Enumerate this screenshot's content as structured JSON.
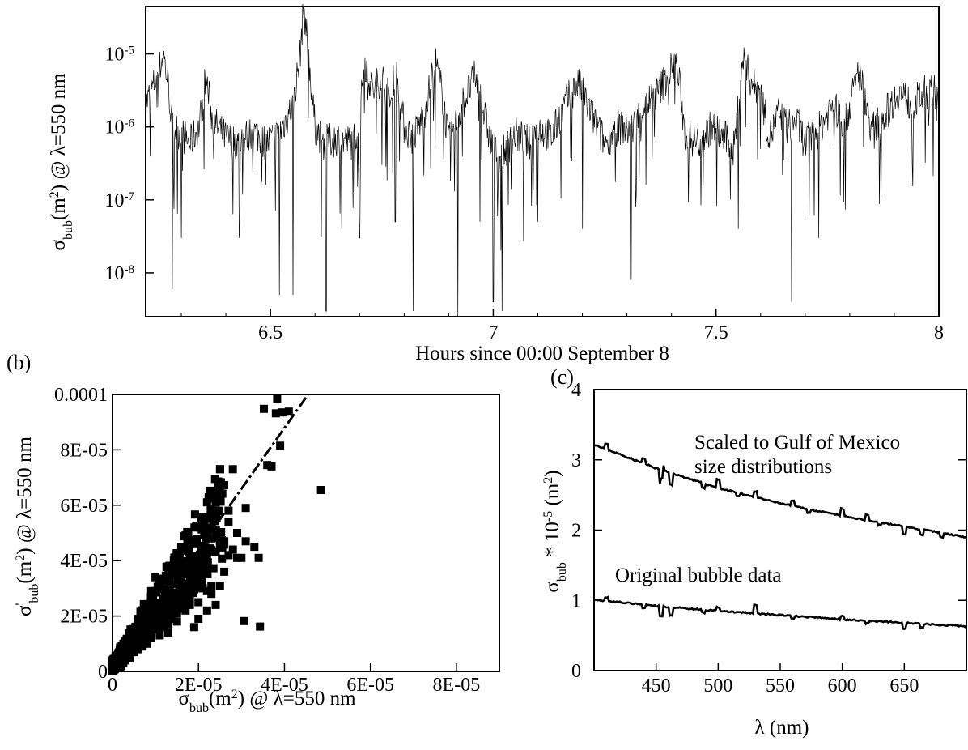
{
  "chart_data": [
    {
      "id": "a",
      "panel_label": "",
      "type": "line",
      "x_label": "Hours since 00:00 September 8",
      "y_label": {
        "sym": "σ",
        "sub": "bub",
        "mid": "(m",
        "sup": "2",
        "rest": ") @ λ=550 nm"
      },
      "xlim": [
        6.22,
        8.0
      ],
      "ylim_log10": [
        -8.6,
        -4.35
      ],
      "y_scale": "log",
      "x_ticks": [
        {
          "v": 6.5,
          "label": "6.5"
        },
        {
          "v": 7,
          "label": "7"
        },
        {
          "v": 7.5,
          "label": "7.5"
        },
        {
          "v": 8,
          "label": "8"
        }
      ],
      "y_ticks": [
        {
          "exp": -8,
          "label": "-8"
        },
        {
          "exp": -7,
          "label": "-7"
        },
        {
          "exp": -6,
          "label": "-6"
        },
        {
          "exp": -5,
          "label": "-5"
        }
      ],
      "series": [
        {
          "x": [
            6.22,
            6.24,
            6.25,
            6.26,
            6.27,
            6.28,
            6.3,
            6.32,
            6.34,
            6.355,
            6.37,
            6.4,
            6.43,
            6.46,
            6.49,
            6.52,
            6.55,
            6.565,
            6.575,
            6.585,
            6.6,
            6.62,
            6.65,
            6.68,
            6.7,
            6.71,
            6.73,
            6.75,
            6.77,
            6.78,
            6.8,
            6.82,
            6.845,
            6.87,
            6.885,
            6.9,
            6.93,
            6.96,
            6.99,
            7.0,
            7.02,
            7.05,
            7.08,
            7.1,
            7.13,
            7.16,
            7.19,
            7.22,
            7.25,
            7.28,
            7.31,
            7.34,
            7.37,
            7.39,
            7.41,
            7.42,
            7.43,
            7.46,
            7.49,
            7.52,
            7.54,
            7.56,
            7.58,
            7.6,
            7.62,
            7.64,
            7.66,
            7.68,
            7.7,
            7.73,
            7.76,
            7.79,
            7.82,
            7.85,
            7.88,
            7.91,
            7.94,
            7.97,
            8.0
          ],
          "y": [
            2e-06,
            4e-06,
            6e-06,
            1e-05,
            4e-06,
            1e-06,
            8e-07,
            6e-07,
            1e-06,
            5e-06,
            1.2e-06,
            7e-07,
            6e-07,
            9e-07,
            6e-07,
            8e-07,
            2e-06,
            8e-06,
            4.5e-05,
            1e-05,
            1e-06,
            6e-07,
            7e-07,
            6e-07,
            1e-06,
            8.5e-06,
            3e-06,
            5e-06,
            2e-06,
            7e-06,
            1e-06,
            7e-07,
            1.5e-06,
            8e-06,
            3e-06,
            6e-07,
            2e-06,
            5e-06,
            8e-07,
            5e-07,
            4e-07,
            8e-07,
            6e-07,
            1e-06,
            7e-07,
            2e-06,
            4e-06,
            1.5e-06,
            6e-07,
            1e-06,
            9e-07,
            2e-06,
            3e-06,
            5e-06,
            8e-06,
            3e-06,
            8e-07,
            6e-07,
            1e-06,
            7e-07,
            5e-07,
            9e-06,
            4e-06,
            3e-06,
            7e-07,
            1.5e-06,
            1e-06,
            1.2e-06,
            6e-07,
            9e-07,
            2e-06,
            1.1e-06,
            6e-06,
            9e-07,
            1.5e-06,
            3e-06,
            2e-06,
            3e-06,
            3e-06
          ]
        }
      ],
      "notable_dips": [
        {
          "x": 6.28,
          "y": 6e-09
        },
        {
          "x": 6.3,
          "y": 3e-08
        },
        {
          "x": 6.43,
          "y": 3e-08
        },
        {
          "x": 6.52,
          "y": 5e-09
        },
        {
          "x": 6.55,
          "y": 5e-09
        },
        {
          "x": 6.625,
          "y": 3e-09
        },
        {
          "x": 6.66,
          "y": 4e-08
        },
        {
          "x": 6.7,
          "y": 3e-08
        },
        {
          "x": 6.78,
          "y": 5e-08
        },
        {
          "x": 6.82,
          "y": 3e-09
        },
        {
          "x": 6.92,
          "y": 2e-09
        },
        {
          "x": 6.97,
          "y": 5e-08
        },
        {
          "x": 7.0,
          "y": 4e-09
        },
        {
          "x": 7.02,
          "y": 3e-09
        },
        {
          "x": 7.1,
          "y": 5e-08
        },
        {
          "x": 7.2,
          "y": 4e-08
        },
        {
          "x": 7.31,
          "y": 8e-09
        },
        {
          "x": 7.55,
          "y": 4e-08
        },
        {
          "x": 7.67,
          "y": 4e-09
        },
        {
          "x": 7.73,
          "y": 3e-08
        }
      ]
    },
    {
      "id": "b",
      "panel_label": "(b)",
      "type": "scatter",
      "x_label": {
        "sym": "σ",
        "sub": "bub",
        "mid": "(m",
        "sup": "2",
        "rest": ") @ λ=550 nm"
      },
      "y_label": {
        "sym": "σ",
        "prime": "'",
        "sub": "bub",
        "mid": "(m",
        "sup": "2",
        "rest": ") @ λ=550 nm"
      },
      "xlim": [
        0,
        9e-05
      ],
      "ylim": [
        0,
        0.0001
      ],
      "x_ticks": [
        {
          "v": 0,
          "label": "0"
        },
        {
          "v": 2e-05,
          "label": "2E-05"
        },
        {
          "v": 4e-05,
          "label": "4E-05"
        },
        {
          "v": 6e-05,
          "label": "6E-05"
        },
        {
          "v": 8e-05,
          "label": "8E-05"
        }
      ],
      "y_ticks": [
        {
          "v": 0,
          "label": "0"
        },
        {
          "v": 2e-05,
          "label": "2E-05"
        },
        {
          "v": 4e-05,
          "label": "4E-05"
        },
        {
          "v": 6e-05,
          "label": "6E-05"
        },
        {
          "v": 8e-05,
          "label": "8E-05"
        },
        {
          "v": 0.0001,
          "label": "0.0001"
        }
      ],
      "fit_line": {
        "x": [
          0,
          4.55e-05
        ],
        "y": [
          0,
          0.0001
        ]
      },
      "points": {
        "x": [
          3.83e-05,
          3.8e-05,
          3.95e-05,
          4.1e-05,
          3.52e-05,
          3.9e-05,
          3.6e-05,
          3.7e-05,
          4.85e-05,
          2.5e-05,
          2.8e-05,
          2.4e-05,
          2.5e-05,
          3.1e-05,
          2.3e-05,
          2.7e-05,
          2.7e-05,
          2.2e-05,
          2.4e-05,
          2.9e-05,
          2.6e-05,
          2.8e-05,
          2.7e-05,
          3e-05,
          2.4e-05,
          2.5e-05,
          2.3e-05,
          2.6e-05,
          3.3e-05,
          3.1e-05,
          2.9e-05,
          3.4e-05,
          2.4e-05,
          2.2e-05,
          2e-05,
          2.1e-05,
          1.8e-05,
          1.9e-05,
          2.3e-05,
          1.7e-05,
          1.6e-05,
          1.5e-05,
          1.8e-05,
          2e-05,
          1.9e-05,
          1.4e-05,
          1.3e-05,
          1.2e-05,
          1.1e-05,
          1e-05,
          9e-06,
          1.7e-05,
          1.5e-05,
          1.4e-05,
          1.2e-05,
          1e-05,
          8e-06,
          7e-06,
          6e-06,
          5e-06,
          4e-06,
          3e-06,
          2e-06,
          1e-06,
          1.3e-05,
          1.1e-05,
          9e-06,
          8e-06,
          6e-06,
          5e-06,
          4e-06,
          3e-06,
          2.2e-06,
          1.5e-06,
          1e-06,
          5e-07,
          1.6e-05,
          1.4e-05,
          1.2e-05,
          1e-05,
          9e-06,
          7e-06,
          6.5e-06,
          5.5e-06,
          4.5e-06,
          3.5e-06,
          3e-06,
          2.5e-06,
          2e-06,
          1.8e-06,
          1e-06,
          5e-07,
          3e-07,
          2.1e-05,
          1.9e-05,
          1.8e-05,
          1.6e-05,
          1.5e-05,
          1.3e-05,
          1.2e-05,
          1.1e-05,
          9e-06,
          8e-06,
          7e-06,
          6e-06,
          5e-06,
          4e-06,
          3e-06,
          2e-06,
          2.5e-05,
          2.3e-05,
          2.2e-05,
          2e-05,
          1.7e-05,
          1.5e-05,
          1.4e-05,
          1.3e-05,
          1.1e-05,
          9e-06,
          8e-06,
          6e-06,
          4e-06,
          3.5e-06,
          2e-06,
          1.5e-06,
          1e-06
        ],
        "y": [
          9.85e-05,
          9.32e-05,
          9.35e-05,
          9.38e-05,
          9.48e-05,
          8.15e-05,
          7.45e-05,
          7.4e-05,
          6.55e-05,
          7.3e-05,
          7.3e-05,
          6.1e-05,
          6.5e-05,
          5.9e-05,
          5.6e-05,
          5.8e-05,
          5.4e-05,
          5.2e-05,
          5e-05,
          5e-05,
          4.7e-05,
          4.4e-05,
          4.2e-05,
          4.1e-05,
          4.3e-05,
          4.6e-05,
          4.8e-05,
          3.6e-05,
          4.5e-05,
          4.7e-05,
          4.1e-05,
          4.1e-05,
          2.4e-05,
          2.2e-05,
          3.9e-05,
          3.6e-05,
          3.4e-05,
          3e-05,
          3.1e-05,
          2.8e-05,
          3.2e-05,
          2.7e-05,
          2.4e-05,
          1.9e-05,
          1.6e-05,
          3.6e-05,
          3.4e-05,
          3.3e-05,
          3.1e-05,
          3.4e-05,
          2.9e-05,
          2.5e-05,
          2.2e-05,
          2e-05,
          2.2e-05,
          2.1e-05,
          1.9e-05,
          1.7e-05,
          1.5e-05,
          1.3e-05,
          1.1e-05,
          9e-06,
          7e-06,
          5e-06,
          1.4e-05,
          1.3e-05,
          1.2e-05,
          1e-05,
          9e-06,
          8e-06,
          6e-06,
          5e-06,
          3.5e-06,
          2.5e-06,
          1.5e-06,
          8e-07,
          2.8e-05,
          2.6e-05,
          2.2e-05,
          1.8e-05,
          1.6e-05,
          1.4e-05,
          1e-05,
          8e-06,
          7e-06,
          6e-06,
          4e-06,
          3e-06,
          2e-06,
          1.5e-06,
          3e-06,
          1.8e-06,
          6e-07,
          3e-05,
          3.2e-05,
          2.6e-05,
          2.4e-05,
          1.8e-05,
          2e-05,
          1.6e-05,
          1.4e-05,
          1.2e-05,
          1.1e-05,
          9e-06,
          8e-06,
          7e-06,
          5e-06,
          4e-06,
          3e-06,
          3.1e-05,
          2.8e-05,
          2.9e-05,
          2.5e-05,
          2.2e-05,
          2.1e-05,
          1.9e-05,
          1.7e-05,
          1.5e-05,
          1.3e-05,
          1.1e-05,
          9e-06,
          7e-06,
          5e-06,
          4e-06,
          3e-06,
          2e-06
        ]
      },
      "outliers": {
        "x": [
          3.05e-05,
          3.43e-05
        ],
        "y": [
          1.82e-05,
          1.62e-05
        ]
      }
    },
    {
      "id": "c",
      "panel_label": "(c)",
      "type": "line",
      "x_label": "λ (nm)",
      "y_label": {
        "sym": "σ",
        "sub": "bub",
        "mid": " * 10",
        "sup": "-5",
        "rest": " (m",
        "sup2": "2",
        "rest2": ")"
      },
      "xlim": [
        400,
        700
      ],
      "ylim": [
        0,
        4
      ],
      "x_ticks": [
        {
          "v": 450,
          "label": "450"
        },
        {
          "v": 500,
          "label": "500"
        },
        {
          "v": 550,
          "label": "550"
        },
        {
          "v": 600,
          "label": "600"
        },
        {
          "v": 650,
          "label": "650"
        }
      ],
      "y_ticks": [
        {
          "v": 0,
          "label": "0"
        },
        {
          "v": 1,
          "label": "1"
        },
        {
          "v": 2,
          "label": "2"
        },
        {
          "v": 3,
          "label": "3"
        },
        {
          "v": 4,
          "label": "4"
        }
      ],
      "annotations": [
        {
          "text_line1": "Scaled to Gulf of Mexico",
          "text_line2": "size distributions",
          "x": 520,
          "y": 3.45
        },
        {
          "text_line1": "Original bubble data",
          "x": 445,
          "y": 1.15
        }
      ],
      "series": [
        {
          "name": "",
          "x": [
            400,
            450,
            500,
            550,
            600,
            650,
            700
          ],
          "y": [
            3.22,
            2.88,
            2.6,
            2.38,
            2.2,
            2.05,
            1.9
          ],
          "spikes": [
            {
              "x": 410,
              "d": 0.07
            },
            {
              "x": 440,
              "d": 0.07
            },
            {
              "x": 454,
              "d": -0.2
            },
            {
              "x": 455,
              "d": 0.08
            },
            {
              "x": 462,
              "d": -0.17
            },
            {
              "x": 488,
              "d": -0.07
            },
            {
              "x": 500,
              "d": 0.12
            },
            {
              "x": 516,
              "d": -0.05
            },
            {
              "x": 530,
              "d": 0.08
            },
            {
              "x": 560,
              "d": 0.07
            },
            {
              "x": 573,
              "d": -0.05
            },
            {
              "x": 600,
              "d": 0.1
            },
            {
              "x": 620,
              "d": 0.08
            },
            {
              "x": 630,
              "d": -0.04
            },
            {
              "x": 650,
              "d": -0.1
            },
            {
              "x": 664,
              "d": -0.08
            },
            {
              "x": 680,
              "d": -0.06
            }
          ]
        },
        {
          "name": "",
          "x": [
            400,
            450,
            500,
            550,
            600,
            650,
            700
          ],
          "y": [
            1.01,
            0.92,
            0.85,
            0.79,
            0.73,
            0.68,
            0.63
          ],
          "spikes": [
            {
              "x": 410,
              "d": 0.05
            },
            {
              "x": 440,
              "d": -0.05
            },
            {
              "x": 454,
              "d": -0.14
            },
            {
              "x": 462,
              "d": -0.12
            },
            {
              "x": 488,
              "d": -0.04
            },
            {
              "x": 500,
              "d": 0.05
            },
            {
              "x": 530,
              "d": 0.12
            },
            {
              "x": 560,
              "d": -0.04
            },
            {
              "x": 600,
              "d": 0.05
            },
            {
              "x": 620,
              "d": -0.04
            },
            {
              "x": 650,
              "d": -0.08
            },
            {
              "x": 664,
              "d": -0.06
            }
          ]
        }
      ]
    }
  ]
}
